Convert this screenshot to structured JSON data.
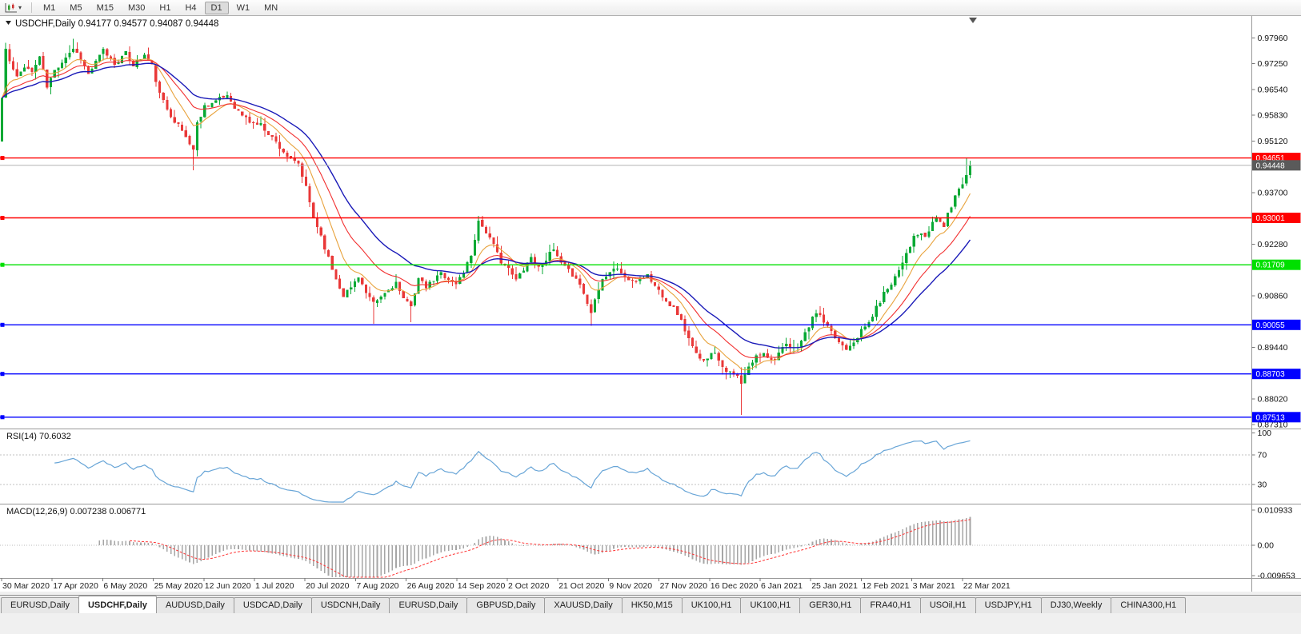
{
  "toolbar": {
    "chart_type_icon": "candlestick-chart-icon",
    "dropdown_icon": "chevron-down-icon",
    "timeframes": [
      "M1",
      "M5",
      "M15",
      "M30",
      "H1",
      "H4",
      "D1",
      "W1",
      "MN"
    ],
    "active_timeframe": "D1"
  },
  "chart": {
    "title": {
      "symbol_period": "USDCHF,Daily",
      "open": "0.94177",
      "high": "0.94577",
      "low": "0.94087",
      "close": "0.94448"
    },
    "colors": {
      "bull": "#07a934",
      "bear": "#e93838",
      "axis_text": "#111111",
      "separator": "#9a9a9a",
      "level_dash": "#c0c0c0"
    },
    "y_axis": {
      "top_price": 0.9856,
      "bottom_price": 0.872,
      "ticks": [
        "0.97960",
        "0.97250",
        "0.96540",
        "0.95830",
        "0.95120",
        "0.93700",
        "0.92280",
        "0.90860",
        "0.89440",
        "0.88020",
        "0.87310"
      ]
    },
    "x_axis": {
      "date_labels": [
        "30 Mar 2020",
        "17 Apr 2020",
        "6 May 2020",
        "25 May 2020",
        "12 Jun 2020",
        "1 Jul 2020",
        "20 Jul 2020",
        "7 Aug 2020",
        "26 Aug 2020",
        "14 Sep 2020",
        "2 Oct 2020",
        "21 Oct 2020",
        "9 Nov 2020",
        "27 Nov 2020",
        "16 Dec 2020",
        "6 Jan 2021",
        "25 Jan 2021",
        "12 Feb 2021",
        "3 Mar 2021",
        "22 Mar 2021"
      ]
    },
    "hlines": [
      {
        "price": 0.94651,
        "label": "0.94651",
        "color": "#ff0000"
      },
      {
        "price": 0.93001,
        "label": "0.93001",
        "color": "#ff0000"
      },
      {
        "price": 0.91709,
        "label": "0.91709",
        "color": "#00e000"
      },
      {
        "price": 0.90055,
        "label": "0.90055",
        "color": "#0000ff"
      },
      {
        "price": 0.88703,
        "label": "0.88703",
        "color": "#0000ff"
      },
      {
        "price": 0.87513,
        "label": "0.87513",
        "color": "#0000ff"
      }
    ],
    "current_price": {
      "price": 0.94448,
      "label": "0.94448",
      "line_color": "#b4b4b4",
      "box_color": "#5a5a5a"
    },
    "moving_averages": [
      {
        "period": 9,
        "color": "#e8a33d",
        "width": 1.1
      },
      {
        "period": 18,
        "color": "#f23030",
        "width": 1.1
      },
      {
        "period": 30,
        "color": "#1a1ab8",
        "width": 1.4
      }
    ],
    "candles": {
      "count": 259,
      "seed": 11,
      "noise": 0.0007,
      "gap_noise": 0.0005,
      "wick": 0.0022,
      "anchors": [
        [
          0,
          0.963
        ],
        [
          1,
          0.9765
        ],
        [
          2,
          0.973
        ],
        [
          4,
          0.9685
        ],
        [
          6,
          0.972
        ],
        [
          8,
          0.97
        ],
        [
          10,
          0.9745
        ],
        [
          12,
          0.966
        ],
        [
          14,
          0.9705
        ],
        [
          17,
          0.9745
        ],
        [
          19,
          0.9768
        ],
        [
          21,
          0.974
        ],
        [
          23,
          0.9695
        ],
        [
          25,
          0.9728
        ],
        [
          27,
          0.9762
        ],
        [
          30,
          0.9725
        ],
        [
          33,
          0.9752
        ],
        [
          35,
          0.9722
        ],
        [
          38,
          0.9748
        ],
        [
          40,
          0.9718
        ],
        [
          42,
          0.964
        ],
        [
          44,
          0.96
        ],
        [
          46,
          0.9568
        ],
        [
          48,
          0.954
        ],
        [
          51,
          0.9488
        ],
        [
          52,
          0.956
        ],
        [
          54,
          0.9608
        ],
        [
          57,
          0.9622
        ],
        [
          60,
          0.9638
        ],
        [
          63,
          0.9592
        ],
        [
          66,
          0.9565
        ],
        [
          69,
          0.9556
        ],
        [
          72,
          0.9522
        ],
        [
          75,
          0.9482
        ],
        [
          77,
          0.9458
        ],
        [
          79,
          0.9448
        ],
        [
          81,
          0.9382
        ],
        [
          83,
          0.9302
        ],
        [
          85,
          0.9252
        ],
        [
          87,
          0.9188
        ],
        [
          89,
          0.9132
        ],
        [
          91,
          0.9088
        ],
        [
          93,
          0.9108
        ],
        [
          95,
          0.9142
        ],
        [
          97,
          0.9092
        ],
        [
          99,
          0.9062
        ],
        [
          101,
          0.9082
        ],
        [
          103,
          0.9102
        ],
        [
          105,
          0.9122
        ],
        [
          107,
          0.9072
        ],
        [
          109,
          0.9062
        ],
        [
          111,
          0.9132
        ],
        [
          113,
          0.9108
        ],
        [
          115,
          0.9128
        ],
        [
          117,
          0.9148
        ],
        [
          119,
          0.9132
        ],
        [
          121,
          0.9118
        ],
        [
          123,
          0.9152
        ],
        [
          125,
          0.9198
        ],
        [
          127,
          0.9292
        ],
        [
          129,
          0.9262
        ],
        [
          131,
          0.9222
        ],
        [
          133,
          0.9182
        ],
        [
          135,
          0.9158
        ],
        [
          137,
          0.9128
        ],
        [
          139,
          0.9162
        ],
        [
          141,
          0.9192
        ],
        [
          143,
          0.9162
        ],
        [
          145,
          0.9188
        ],
        [
          147,
          0.9212
        ],
        [
          149,
          0.9172
        ],
        [
          151,
          0.9152
        ],
        [
          153,
          0.9138
        ],
        [
          155,
          0.9092
        ],
        [
          157,
          0.9038
        ],
        [
          158,
          0.9082
        ],
        [
          160,
          0.9132
        ],
        [
          162,
          0.9152
        ],
        [
          164,
          0.9162
        ],
        [
          166,
          0.9138
        ],
        [
          168,
          0.9122
        ],
        [
          170,
          0.9132
        ],
        [
          172,
          0.9142
        ],
        [
          174,
          0.9112
        ],
        [
          176,
          0.9088
        ],
        [
          178,
          0.9062
        ],
        [
          180,
          0.9038
        ],
        [
          182,
          0.8992
        ],
        [
          184,
          0.8942
        ],
        [
          186,
          0.8908
        ],
        [
          188,
          0.8918
        ],
        [
          190,
          0.8932
        ],
        [
          192,
          0.8892
        ],
        [
          194,
          0.8872
        ],
        [
          196,
          0.8862
        ],
        [
          197,
          0.8842
        ],
        [
          199,
          0.8888
        ],
        [
          201,
          0.8918
        ],
        [
          203,
          0.8932
        ],
        [
          205,
          0.8908
        ],
        [
          207,
          0.8928
        ],
        [
          209,
          0.8948
        ],
        [
          211,
          0.8938
        ],
        [
          213,
          0.8962
        ],
        [
          215,
          0.9002
        ],
        [
          217,
          0.9042
        ],
        [
          219,
          0.9012
        ],
        [
          221,
          0.8982
        ],
        [
          223,
          0.8958
        ],
        [
          225,
          0.8942
        ],
        [
          227,
          0.8962
        ],
        [
          229,
          0.8988
        ],
        [
          231,
          0.9012
        ],
        [
          233,
          0.9052
        ],
        [
          235,
          0.9092
        ],
        [
          237,
          0.9122
        ],
        [
          239,
          0.9158
        ],
        [
          241,
          0.9205
        ],
        [
          243,
          0.9245
        ],
        [
          245,
          0.9258
        ],
        [
          246,
          0.9242
        ],
        [
          248,
          0.9288
        ],
        [
          249,
          0.9302
        ],
        [
          250,
          0.9292
        ],
        [
          251,
          0.9275
        ],
        [
          252,
          0.9308
        ],
        [
          253,
          0.9332
        ],
        [
          254,
          0.9362
        ],
        [
          255,
          0.9382
        ],
        [
          256,
          0.9398
        ],
        [
          257,
          0.94177
        ],
        [
          258,
          0.94448
        ]
      ],
      "overrides": {
        "1": {
          "high": 0.9782
        },
        "19": {
          "high": 0.9793
        },
        "51": {
          "low": 0.9431
        },
        "99": {
          "low": 0.9008
        },
        "109": {
          "low": 0.9013
        },
        "127": {
          "high": 0.9306
        },
        "157": {
          "low": 0.9003
        },
        "197": {
          "low": 0.8757
        },
        "257": {
          "high": 0.94651,
          "close": 0.94177
        },
        "258": {
          "open": 0.94177,
          "high": 0.94577,
          "low": 0.94087,
          "close": 0.94448
        }
      }
    },
    "shift_marker_icon": "triangle-down-icon",
    "title_marker_icon": "triangle-down-icon"
  },
  "rsi": {
    "label": "RSI(14)",
    "value": "70.6032",
    "period": 14,
    "color": "#68a5d7",
    "axis": [
      {
        "label": "100",
        "value": 100,
        "line": false
      },
      {
        "label": "70",
        "value": 70,
        "line": true
      },
      {
        "label": "30",
        "value": 30,
        "line": true
      }
    ]
  },
  "macd": {
    "label": "MACD(12,26,9)",
    "value_main": "0.007238",
    "value_signal": "0.006771",
    "fast": 12,
    "slow": 26,
    "signal": 9,
    "histogram_color": "#a6a6a6",
    "signal_color": "#ff3333",
    "axis": [
      {
        "label": "0.010933",
        "value": 0.010933
      },
      {
        "label": "0.00",
        "value": 0
      },
      {
        "label": "-0.009653",
        "value": -0.009653
      }
    ]
  },
  "tabs": {
    "items": [
      {
        "label": "EURUSD,Daily",
        "active": false
      },
      {
        "label": "USDCHF,Daily",
        "active": true
      },
      {
        "label": "AUDUSD,Daily",
        "active": false
      },
      {
        "label": "USDCAD,Daily",
        "active": false
      },
      {
        "label": "USDCNH,Daily",
        "active": false
      },
      {
        "label": "EURUSD,Daily",
        "active": false
      },
      {
        "label": "GBPUSD,Daily",
        "active": false
      },
      {
        "label": "XAUUSD,Daily",
        "active": false
      },
      {
        "label": "HK50,M15",
        "active": false
      },
      {
        "label": "UK100,H1",
        "active": false
      },
      {
        "label": "UK100,H1",
        "active": false
      },
      {
        "label": "GER30,H1",
        "active": false
      },
      {
        "label": "FRA40,H1",
        "active": false
      },
      {
        "label": "USOil,H1",
        "active": false
      },
      {
        "label": "USDJPY,H1",
        "active": false
      },
      {
        "label": "DJ30,Weekly",
        "active": false
      },
      {
        "label": "CHINA300,H1",
        "active": false
      }
    ]
  }
}
